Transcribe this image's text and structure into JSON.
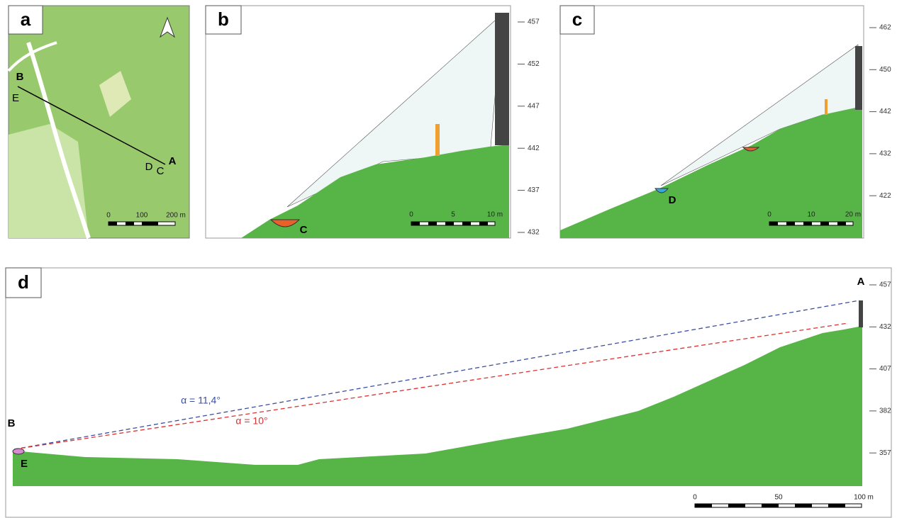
{
  "panels": {
    "a": {
      "label": "a",
      "points": [
        "B",
        "E",
        "D",
        "C",
        "A"
      ],
      "scale": [
        "0",
        "100",
        "200 m"
      ]
    },
    "b": {
      "label": "b",
      "point": "C",
      "elevations": [
        457,
        452,
        447,
        442,
        437,
        432
      ],
      "scale": [
        "0",
        "5",
        "10 m"
      ]
    },
    "c": {
      "label": "c",
      "point": "D",
      "elevations": [
        462,
        450,
        442,
        432,
        422
      ],
      "scale": [
        "0",
        "10",
        "20 m"
      ]
    },
    "d": {
      "label": "d",
      "points": [
        "A",
        "B",
        "E"
      ],
      "angles": [
        "α = 11,4°",
        "α = 10°"
      ],
      "elevations": [
        457,
        432,
        407,
        382,
        357
      ],
      "scale": [
        "0",
        "50",
        "100 m"
      ]
    }
  }
}
